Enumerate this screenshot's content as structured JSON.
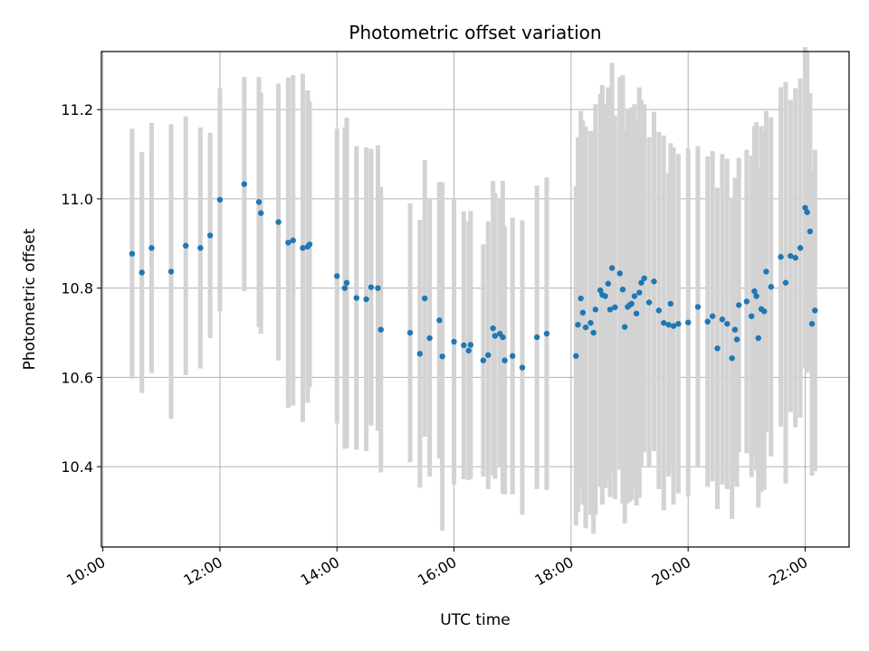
{
  "chart_data": {
    "type": "scatter",
    "title": "Photometric offset variation",
    "xlabel": "UTC time",
    "ylabel": "Photometric offset",
    "x_tick_labels": [
      "10:00",
      "12:00",
      "14:00",
      "16:00",
      "18:00",
      "20:00",
      "22:00"
    ],
    "y_tick_labels": [
      "10.4",
      "10.6",
      "10.8",
      "11.0",
      "11.2"
    ],
    "x_ticks": [
      "10:00",
      "12:00",
      "14:00",
      "16:00",
      "18:00",
      "20:00",
      "22:00"
    ],
    "y_ticks": [
      10.4,
      10.6,
      10.8,
      11.0,
      11.2
    ],
    "xlim": [
      "10:00",
      "22:45"
    ],
    "ylim": [
      10.22,
      11.33
    ],
    "grid": true,
    "marker_color": "#1f77b4",
    "errorbar_color": "#d3d3d3",
    "series": [
      {
        "x": [
          "10:30",
          "10:40",
          "10:50",
          "11:10",
          "11:25",
          "11:40",
          "11:50",
          "12:00",
          "12:25",
          "12:40",
          "12:42",
          "13:00",
          "13:10",
          "13:15",
          "13:25",
          "13:30",
          "13:32",
          "14:00",
          "14:08",
          "14:10",
          "14:20",
          "14:30",
          "14:35",
          "14:42",
          "14:45",
          "15:15",
          "15:25",
          "15:30",
          "15:35",
          "15:45",
          "15:48",
          "16:00",
          "16:10",
          "16:15",
          "16:17",
          "16:30",
          "16:35",
          "16:40",
          "16:42",
          "16:47",
          "16:50",
          "16:52",
          "17:00",
          "17:10",
          "17:25",
          "17:35",
          "18:05",
          "18:07",
          "18:10",
          "18:12",
          "18:15",
          "18:20",
          "18:23",
          "18:25",
          "18:30",
          "18:32",
          "18:35",
          "18:38",
          "18:40",
          "18:42",
          "18:45",
          "18:50",
          "18:53",
          "18:55",
          "18:58",
          "19:00",
          "19:02",
          "19:05",
          "19:07",
          "19:10",
          "19:12",
          "19:15",
          "19:20",
          "19:25",
          "19:30",
          "19:35",
          "19:40",
          "19:42",
          "19:45",
          "19:50",
          "20:00",
          "20:10",
          "20:20",
          "20:25",
          "20:30",
          "20:35",
          "20:40",
          "20:45",
          "20:48",
          "20:50",
          "20:52",
          "21:00",
          "21:05",
          "21:08",
          "21:10",
          "21:12",
          "21:15",
          "21:18",
          "21:20",
          "21:25",
          "21:35",
          "21:40",
          "21:45",
          "21:50",
          "21:55",
          "22:00",
          "22:02",
          "22:05",
          "22:07",
          "22:10"
        ],
        "y": [
          10.877,
          10.835,
          10.89,
          10.837,
          10.895,
          10.89,
          10.918,
          10.998,
          11.033,
          10.993,
          10.968,
          10.948,
          10.902,
          10.907,
          10.89,
          10.893,
          10.898,
          10.827,
          10.8,
          10.812,
          10.778,
          10.775,
          10.802,
          10.8,
          10.707,
          10.7,
          10.653,
          10.777,
          10.688,
          10.728,
          10.647,
          10.68,
          10.672,
          10.66,
          10.673,
          10.638,
          10.65,
          10.71,
          10.693,
          10.698,
          10.69,
          10.638,
          10.648,
          10.622,
          10.69,
          10.698,
          10.648,
          10.718,
          10.777,
          10.745,
          10.712,
          10.722,
          10.7,
          10.752,
          10.795,
          10.785,
          10.782,
          10.81,
          10.752,
          10.845,
          10.757,
          10.833,
          10.797,
          10.713,
          10.758,
          10.762,
          10.765,
          10.782,
          10.743,
          10.79,
          10.812,
          10.822,
          10.768,
          10.815,
          10.75,
          10.722,
          10.718,
          10.765,
          10.715,
          10.72,
          10.723,
          10.758,
          10.725,
          10.737,
          10.665,
          10.73,
          10.72,
          10.643,
          10.707,
          10.685,
          10.762,
          10.77,
          10.737,
          10.793,
          10.782,
          10.688,
          10.753,
          10.748,
          10.837,
          10.803,
          10.87,
          10.812,
          10.872,
          10.868,
          10.89,
          10.98,
          10.97,
          10.927,
          10.72,
          10.75
        ],
        "err": [
          0.28,
          0.27,
          0.28,
          0.33,
          0.29,
          0.27,
          0.23,
          0.25,
          0.24,
          0.28,
          0.27,
          0.31,
          0.37,
          0.37,
          0.39,
          0.35,
          0.32,
          0.33,
          0.36,
          0.37,
          0.34,
          0.34,
          0.31,
          0.32,
          0.32,
          0.29,
          0.3,
          0.31,
          0.31,
          0.31,
          0.39,
          0.32,
          0.3,
          0.29,
          0.3,
          0.26,
          0.3,
          0.33,
          0.32,
          0.3,
          0.35,
          0.3,
          0.31,
          0.33,
          0.34,
          0.35,
          0.38,
          0.42,
          0.42,
          0.43,
          0.45,
          0.43,
          0.45,
          0.46,
          0.44,
          0.47,
          0.43,
          0.44,
          0.42,
          0.46,
          0.43,
          0.44,
          0.48,
          0.44,
          0.44,
          0.44,
          0.44,
          0.43,
          0.43,
          0.46,
          0.41,
          0.39,
          0.37,
          0.38,
          0.4,
          0.42,
          0.34,
          0.36,
          0.4,
          0.38,
          0.39,
          0.36,
          0.37,
          0.37,
          0.36,
          0.37,
          0.37,
          0.36,
          0.34,
          0.33,
          0.33,
          0.34,
          0.36,
          0.37,
          0.39,
          0.38,
          0.41,
          0.4,
          0.36,
          0.38,
          0.38,
          0.45,
          0.35,
          0.38,
          0.38,
          0.36,
          0.36,
          0.31,
          0.34,
          0.36
        ]
      }
    ]
  }
}
